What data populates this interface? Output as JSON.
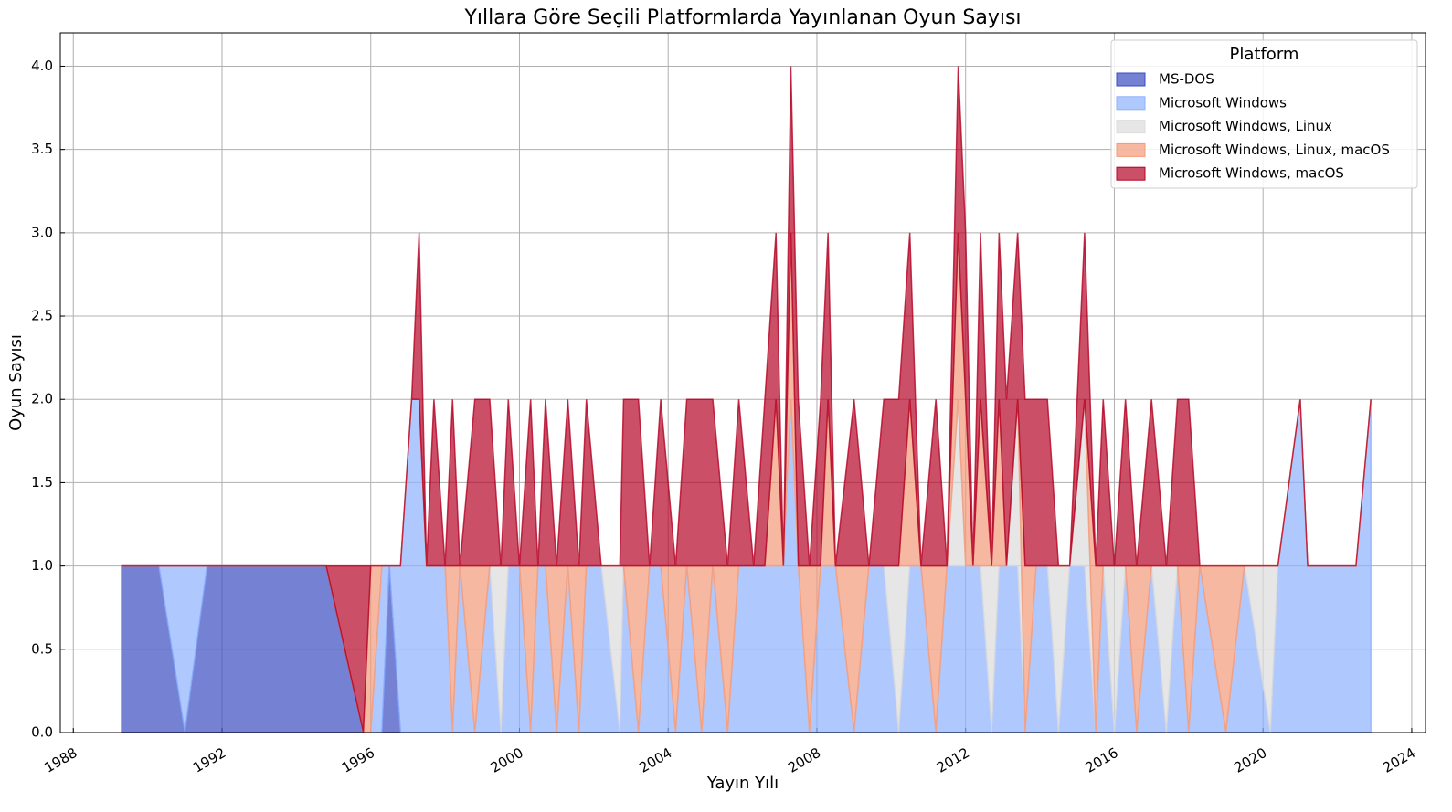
{
  "chart_data": {
    "type": "stacked_area",
    "title": "Yıllara Göre Seçili Platformlarda Yayınlanan Oyun Sayısı",
    "x_label": "Yayın Yılı",
    "y_label": "Oyun Sayısı",
    "legend_title": "Platform",
    "legend_position": "upper right",
    "grid": true,
    "opacity": 0.7,
    "xlim": [
      1987.65,
      2024.37
    ],
    "ylim": [
      0,
      4.2
    ],
    "xticks": [
      1988,
      1992,
      1996,
      2000,
      2004,
      2008,
      2012,
      2016,
      2020,
      2024
    ],
    "yticks": [
      {
        "value": 0,
        "label": "0.0"
      },
      {
        "value": 0.5,
        "label": "0.5"
      },
      {
        "value": 1,
        "label": "1.0"
      },
      {
        "value": 1.5,
        "label": "1.5"
      },
      {
        "value": 2,
        "label": "2.0"
      },
      {
        "value": 2.5,
        "label": "2.5"
      },
      {
        "value": 3,
        "label": "3.0"
      },
      {
        "value": 3.5,
        "label": "3.5"
      },
      {
        "value": 4,
        "label": "4.0"
      }
    ],
    "x": [
      1989.3,
      1990.3,
      1991.0,
      1991.6,
      1994.8,
      1995.8,
      1996.0,
      1996.3,
      1996.5,
      1996.8,
      1997.1,
      1997.3,
      1997.5,
      1997.7,
      1998.0,
      1998.2,
      1998.4,
      1998.8,
      1999.2,
      1999.5,
      1999.7,
      2000.0,
      2000.3,
      2000.5,
      2000.7,
      2001.0,
      2001.3,
      2001.6,
      2001.8,
      2002.2,
      2002.7,
      2002.8,
      2003.2,
      2003.5,
      2003.8,
      2004.2,
      2004.5,
      2004.9,
      2005.2,
      2005.6,
      2005.9,
      2006.3,
      2006.6,
      2006.9,
      2007.1,
      2007.3,
      2007.5,
      2007.8,
      2008.1,
      2008.3,
      2008.5,
      2009.0,
      2009.4,
      2009.8,
      2010.2,
      2010.5,
      2010.8,
      2011.2,
      2011.5,
      2011.8,
      2012.0,
      2012.2,
      2012.4,
      2012.7,
      2012.9,
      2013.1,
      2013.4,
      2013.6,
      2013.9,
      2014.2,
      2014.5,
      2014.8,
      2015.2,
      2015.5,
      2015.7,
      2016.0,
      2016.3,
      2016.6,
      2017.0,
      2017.4,
      2017.7,
      2018.0,
      2018.3,
      2019.0,
      2019.5,
      2020.2,
      2020.4,
      2021.0,
      2021.2,
      2022.5,
      2022.9
    ],
    "series": [
      {
        "name": "MS-DOS",
        "color": "#3b4cc0",
        "values": [
          1,
          1,
          0,
          1,
          1,
          0,
          0,
          0,
          1,
          0,
          0,
          0,
          0,
          0,
          0,
          0,
          0,
          0,
          0,
          0,
          0,
          0,
          0,
          0,
          0,
          0,
          0,
          0,
          0,
          0,
          0,
          0,
          0,
          0,
          0,
          0,
          0,
          0,
          0,
          0,
          0,
          0,
          0,
          0,
          0,
          0,
          0,
          0,
          0,
          0,
          0,
          0,
          0,
          0,
          0,
          0,
          0,
          0,
          0,
          0,
          0,
          0,
          0,
          0,
          0,
          0,
          0,
          0,
          0,
          0,
          0,
          0,
          0,
          0,
          0,
          0,
          0,
          0,
          0,
          0,
          0,
          0,
          0,
          0,
          0,
          0,
          0,
          0,
          0,
          0,
          0
        ]
      },
      {
        "name": "Microsoft Windows",
        "color": "#8db0fe",
        "values": [
          0,
          0,
          1,
          0,
          0,
          0,
          0,
          1,
          0,
          1,
          2,
          2,
          1,
          1,
          1,
          0,
          1,
          0,
          1,
          0,
          1,
          1,
          0,
          1,
          1,
          0,
          1,
          0,
          1,
          1,
          0,
          1,
          0,
          1,
          1,
          0,
          1,
          0,
          1,
          0,
          1,
          1,
          1,
          1,
          1,
          2,
          1,
          0,
          1,
          1,
          1,
          0,
          1,
          1,
          0,
          1,
          1,
          0,
          1,
          1,
          1,
          1,
          1,
          0,
          1,
          1,
          1,
          0,
          1,
          1,
          0,
          1,
          1,
          0,
          1,
          0,
          1,
          0,
          1,
          0,
          1,
          0,
          1,
          0,
          1,
          0,
          1,
          2,
          1,
          1,
          2
        ]
      },
      {
        "name": "Microsoft Windows, Linux",
        "color": "#dddcdc",
        "values": [
          0,
          0,
          0,
          0,
          0,
          0,
          0,
          0,
          0,
          0,
          0,
          0,
          0,
          0,
          0,
          0,
          0,
          0,
          0,
          1,
          0,
          0,
          0,
          0,
          0,
          0,
          0,
          0,
          0,
          0,
          1,
          0,
          0,
          0,
          0,
          0,
          0,
          0,
          0,
          0,
          0,
          0,
          0,
          0,
          0,
          0,
          0,
          0,
          0,
          0,
          0,
          0,
          0,
          0,
          1,
          0,
          0,
          0,
          0,
          1,
          0,
          0,
          0,
          1,
          0,
          0,
          1,
          0,
          0,
          0,
          1,
          0,
          1,
          0,
          0,
          1,
          0,
          0,
          0,
          1,
          0,
          0,
          0,
          0,
          0,
          1,
          0,
          0,
          0,
          0,
          0
        ]
      },
      {
        "name": "Microsoft Windows, Linux, macOS",
        "color": "#f49a7b",
        "values": [
          0,
          0,
          0,
          0,
          0,
          0,
          1,
          0,
          0,
          0,
          0,
          0,
          0,
          0,
          0,
          1,
          0,
          1,
          0,
          0,
          0,
          0,
          1,
          0,
          0,
          1,
          0,
          1,
          0,
          0,
          0,
          0,
          1,
          0,
          0,
          1,
          0,
          1,
          0,
          1,
          0,
          0,
          0,
          1,
          0,
          1,
          0,
          1,
          0,
          1,
          0,
          1,
          0,
          0,
          0,
          1,
          0,
          1,
          0,
          1,
          1,
          0,
          1,
          0,
          1,
          0,
          0,
          1,
          0,
          0,
          0,
          0,
          0,
          1,
          0,
          0,
          0,
          1,
          0,
          0,
          0,
          1,
          0,
          1,
          0,
          0,
          0,
          0,
          0,
          0,
          0
        ]
      },
      {
        "name": "Microsoft Windows, macOS",
        "color": "#b40426",
        "values": [
          0,
          0,
          0,
          0,
          0,
          1,
          0,
          0,
          0,
          0,
          0,
          1,
          0,
          1,
          0,
          1,
          0,
          1,
          1,
          0,
          1,
          0,
          1,
          0,
          1,
          0,
          1,
          0,
          1,
          0,
          0,
          1,
          1,
          0,
          1,
          0,
          1,
          1,
          1,
          0,
          1,
          0,
          1,
          1,
          0,
          1,
          1,
          0,
          1,
          1,
          0,
          1,
          0,
          1,
          1,
          1,
          0,
          1,
          0,
          1,
          1,
          0,
          1,
          0,
          1,
          1,
          1,
          1,
          1,
          1,
          0,
          0,
          1,
          0,
          1,
          0,
          1,
          0,
          1,
          0,
          1,
          1,
          0,
          0,
          0,
          0,
          0,
          0,
          0,
          0,
          0
        ]
      }
    ]
  }
}
